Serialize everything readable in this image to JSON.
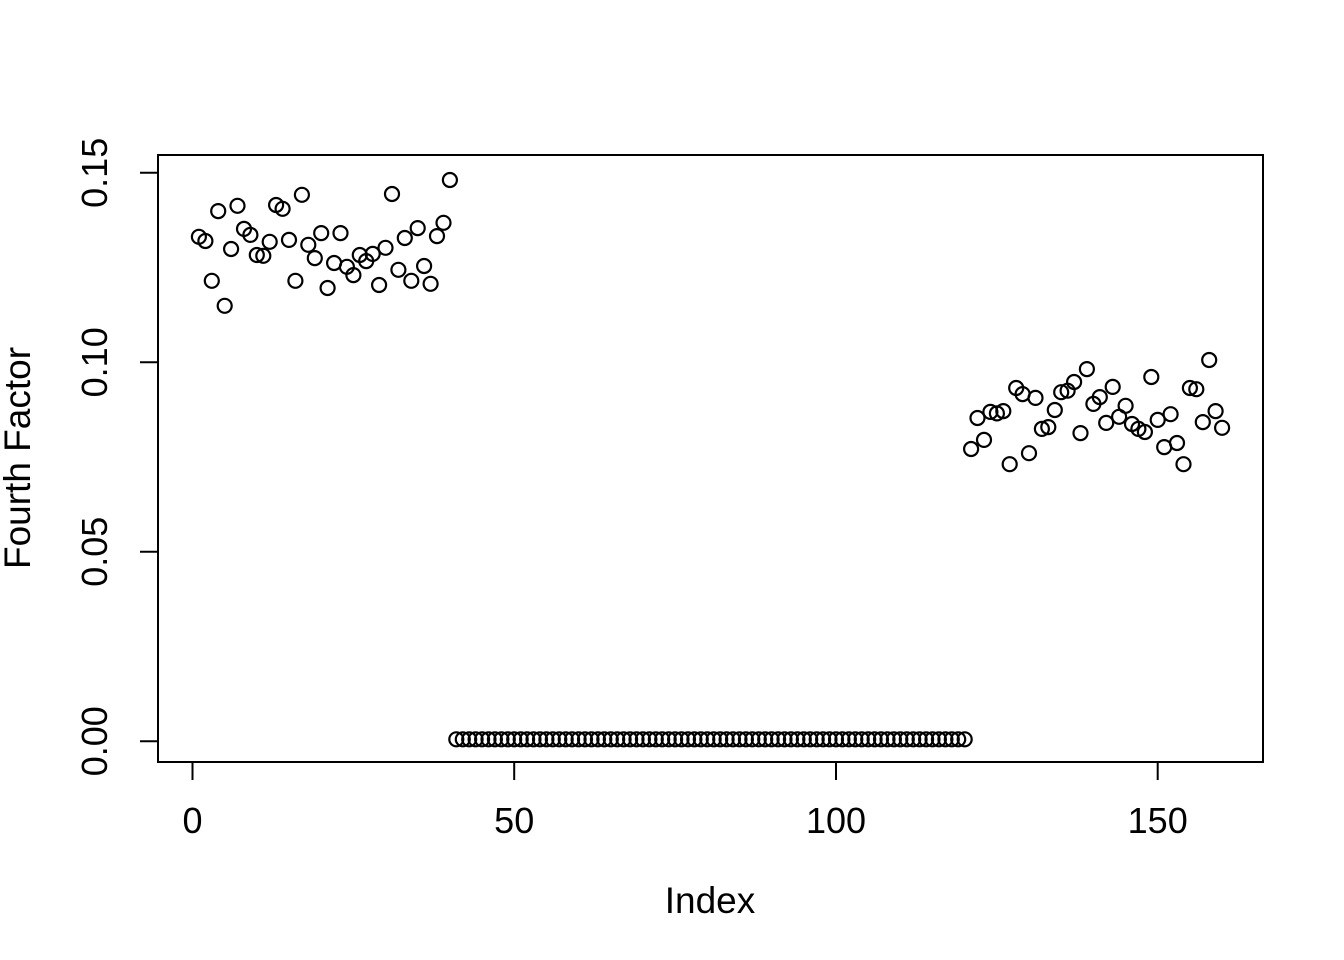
{
  "figure": {
    "background_color": "#ffffff",
    "stroke_color": "#000000",
    "marker": "open-circle"
  },
  "chart_data": {
    "type": "scatter",
    "title": "",
    "xlabel": "Index",
    "ylabel": "Fourth Factor",
    "x_ticks": [
      0,
      50,
      100,
      150
    ],
    "x_tick_labels": [
      "0",
      "50",
      "100",
      "150"
    ],
    "y_ticks": [
      0.0,
      0.05,
      0.1,
      0.15
    ],
    "y_tick_labels": [
      "0.00",
      "0.05",
      "0.10",
      "0.15"
    ],
    "xlim": [
      -5.36,
      166.36
    ],
    "ylim": [
      -0.0055,
      0.1547
    ],
    "grid": false,
    "legend_position": "none",
    "series": [
      {
        "name": "Fourth Factor",
        "x_start": 1,
        "x_step": 1,
        "y": [
          0.1331,
          0.132,
          0.1215,
          0.1399,
          0.1149,
          0.1299,
          0.1413,
          0.1352,
          0.1336,
          0.1283,
          0.1281,
          0.1318,
          0.1415,
          0.1405,
          0.1323,
          0.1215,
          0.1442,
          0.131,
          0.1275,
          0.1341,
          0.1196,
          0.1262,
          0.1341,
          0.1252,
          0.123,
          0.1283,
          0.1267,
          0.1286,
          0.1204,
          0.1302,
          0.1444,
          0.1244,
          0.1328,
          0.1215,
          0.1354,
          0.1254,
          0.1207,
          0.1333,
          0.1368,
          0.1481,
          0.0005,
          0.0005,
          0.0005,
          0.0005,
          0.0005,
          0.0005,
          0.0005,
          0.0005,
          0.0005,
          0.0005,
          0.0005,
          0.0005,
          0.0005,
          0.0005,
          0.0005,
          0.0005,
          0.0005,
          0.0005,
          0.0005,
          0.0005,
          0.0005,
          0.0005,
          0.0005,
          0.0005,
          0.0005,
          0.0005,
          0.0005,
          0.0005,
          0.0005,
          0.0005,
          0.0005,
          0.0005,
          0.0005,
          0.0005,
          0.0005,
          0.0005,
          0.0005,
          0.0005,
          0.0005,
          0.0005,
          0.0005,
          0.0005,
          0.0005,
          0.0005,
          0.0005,
          0.0005,
          0.0005,
          0.0005,
          0.0005,
          0.0005,
          0.0005,
          0.0005,
          0.0005,
          0.0005,
          0.0005,
          0.0005,
          0.0005,
          0.0005,
          0.0005,
          0.0005,
          0.0005,
          0.0005,
          0.0005,
          0.0005,
          0.0005,
          0.0005,
          0.0005,
          0.0005,
          0.0005,
          0.0005,
          0.0005,
          0.0005,
          0.0005,
          0.0005,
          0.0005,
          0.0005,
          0.0005,
          0.0005,
          0.0005,
          0.0005,
          0.0771,
          0.0853,
          0.0795,
          0.0869,
          0.0865,
          0.0871,
          0.0731,
          0.0932,
          0.0916,
          0.076,
          0.0906,
          0.0824,
          0.0829,
          0.0874,
          0.0921,
          0.0925,
          0.0948,
          0.0813,
          0.0982,
          0.089,
          0.0908,
          0.084,
          0.0935,
          0.0856,
          0.0885,
          0.0837,
          0.0824,
          0.0816,
          0.0961,
          0.0848,
          0.0776,
          0.0863,
          0.0787,
          0.0731,
          0.0932,
          0.0929,
          0.0842,
          0.1006,
          0.0871,
          0.0827
        ]
      }
    ]
  }
}
